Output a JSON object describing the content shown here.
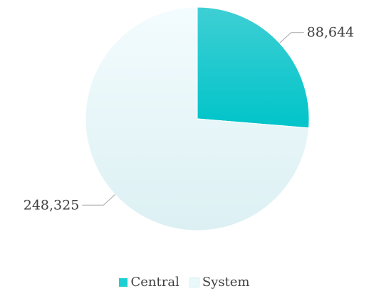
{
  "chart_data": {
    "type": "pie",
    "categories": [
      "Central",
      "System"
    ],
    "values": [
      88644,
      248325
    ],
    "data_labels": [
      "88,644",
      "248,325"
    ],
    "colors": [
      "#1ccfd3",
      "#e8f8fb"
    ],
    "legend_position": "bottom",
    "start_angle": "12 o'clock, clockwise"
  },
  "legend": [
    {
      "label": "Central",
      "color": "#1ccfd3"
    },
    {
      "label": "System",
      "color": "#e8f8fb"
    }
  ]
}
